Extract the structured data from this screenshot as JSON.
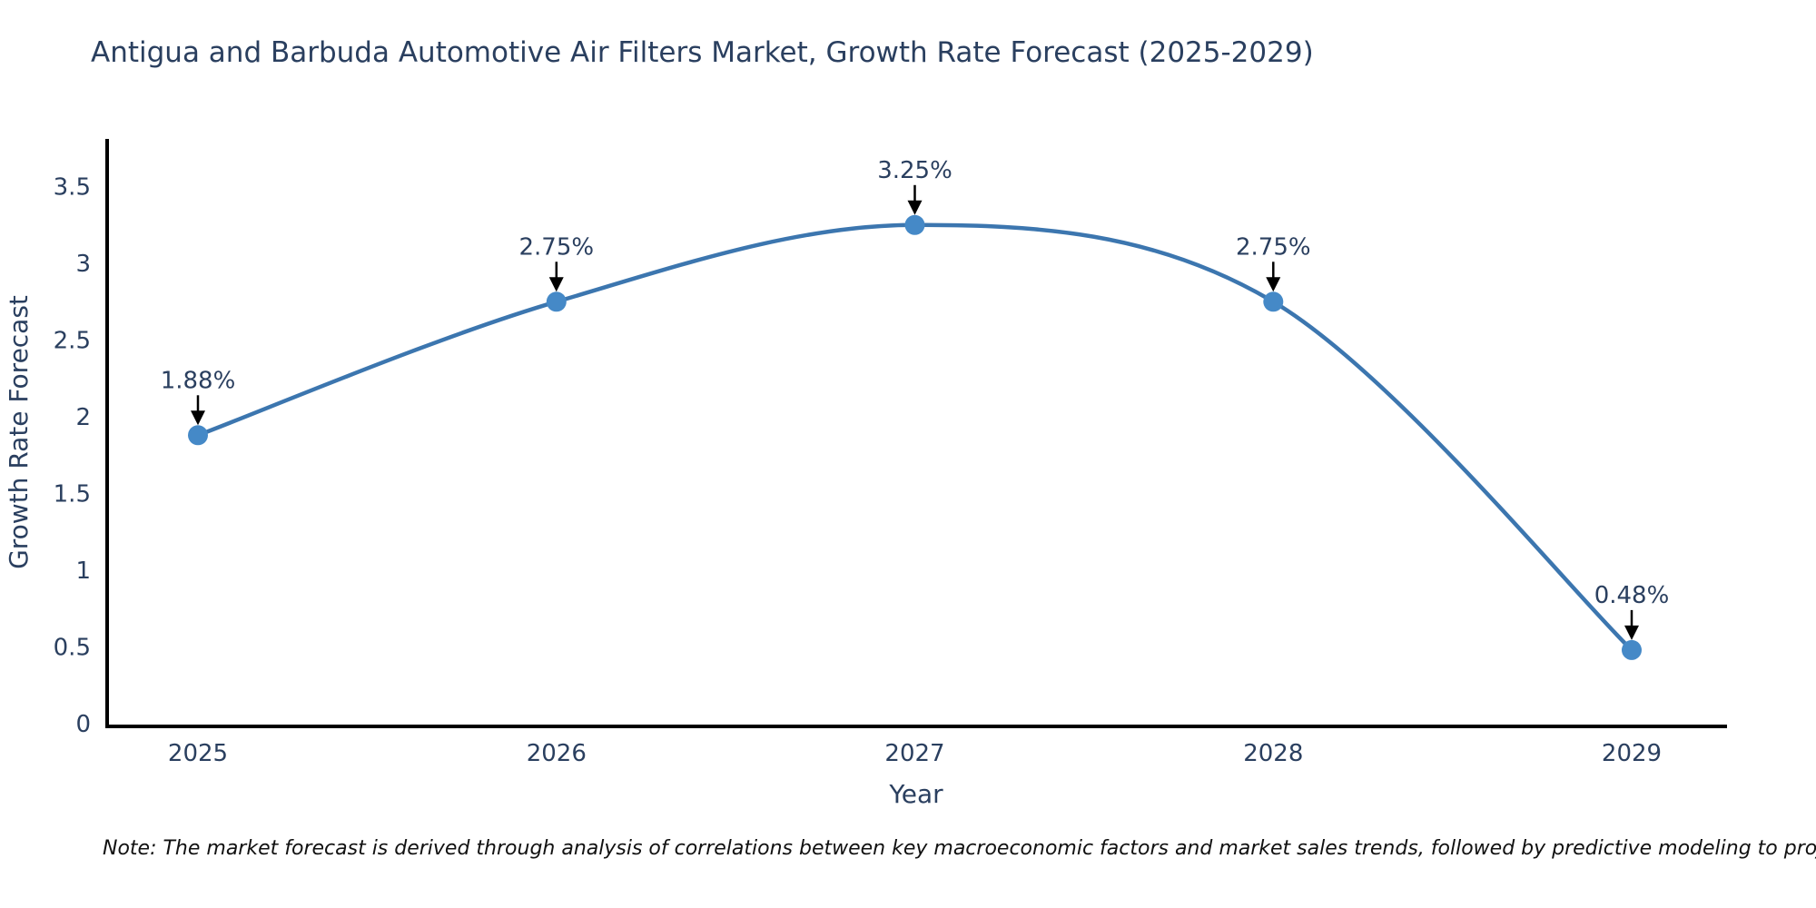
{
  "title": "Antigua and Barbuda Automotive Air Filters Market, Growth Rate Forecast (2025-2029)",
  "note": "Note: The market forecast is derived through analysis of correlations between key macroeconomic factors and market sales trends, followed by predictive modeling to project future sales",
  "chart_data": {
    "type": "line",
    "line_shape": "spline",
    "title": "Antigua and Barbuda Automotive Air Filters Market, Growth Rate Forecast (2025-2029)",
    "xlabel": "Year",
    "ylabel": "Growth Rate Forecast",
    "x": [
      2025,
      2026,
      2027,
      2028,
      2029
    ],
    "values": [
      1.88,
      2.75,
      3.25,
      2.75,
      0.48
    ],
    "point_labels": [
      "1.88%",
      "2.75%",
      "3.25%",
      "2.75%",
      "0.48%"
    ],
    "yticks": [
      0,
      0.5,
      1,
      1.5,
      2,
      2.5,
      3,
      3.5
    ],
    "ylim": [
      0,
      3.81
    ],
    "grid": false,
    "legend": "none",
    "annotations_style": "value label with downward black arrow above each point",
    "colors": {
      "line": "#3c76af",
      "marker": "#4589c7",
      "text": "#2a3f5f",
      "axis": "#000000",
      "note_text": "#111111",
      "background": "#ffffff"
    }
  }
}
